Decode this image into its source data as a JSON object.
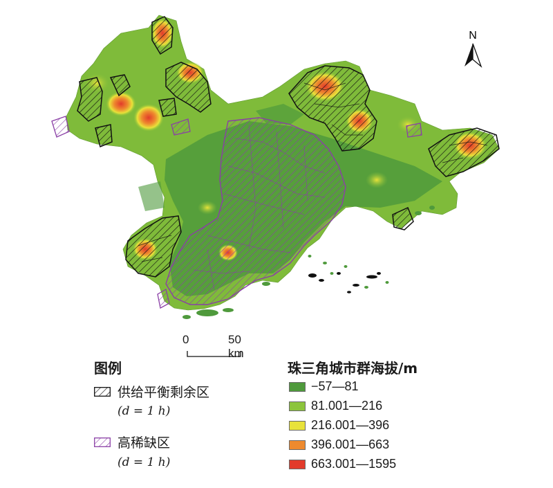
{
  "north": {
    "label": "N"
  },
  "scale_bar": {
    "label_zero": "0",
    "label_end": "50 km"
  },
  "legend_left": {
    "title": "图例",
    "items": [
      {
        "label": "供给平衡剩余区",
        "sub": "(d = 1 h)",
        "color": "#1a1a1a"
      },
      {
        "label": "高稀缺区",
        "sub": "(d = 1 h)",
        "color": "#8a3fa6"
      }
    ]
  },
  "legend_right": {
    "title": "珠三角城市群海拔/m",
    "classes": [
      {
        "label": "−57—81",
        "color": "#4f9a3c"
      },
      {
        "label": "81.001—216",
        "color": "#8cc43c"
      },
      {
        "label": "216.001—396",
        "color": "#e8e23a"
      },
      {
        "label": "396.001—663",
        "color": "#ee8a2e"
      },
      {
        "label": "663.001—1595",
        "color": "#e23b2b"
      }
    ]
  }
}
